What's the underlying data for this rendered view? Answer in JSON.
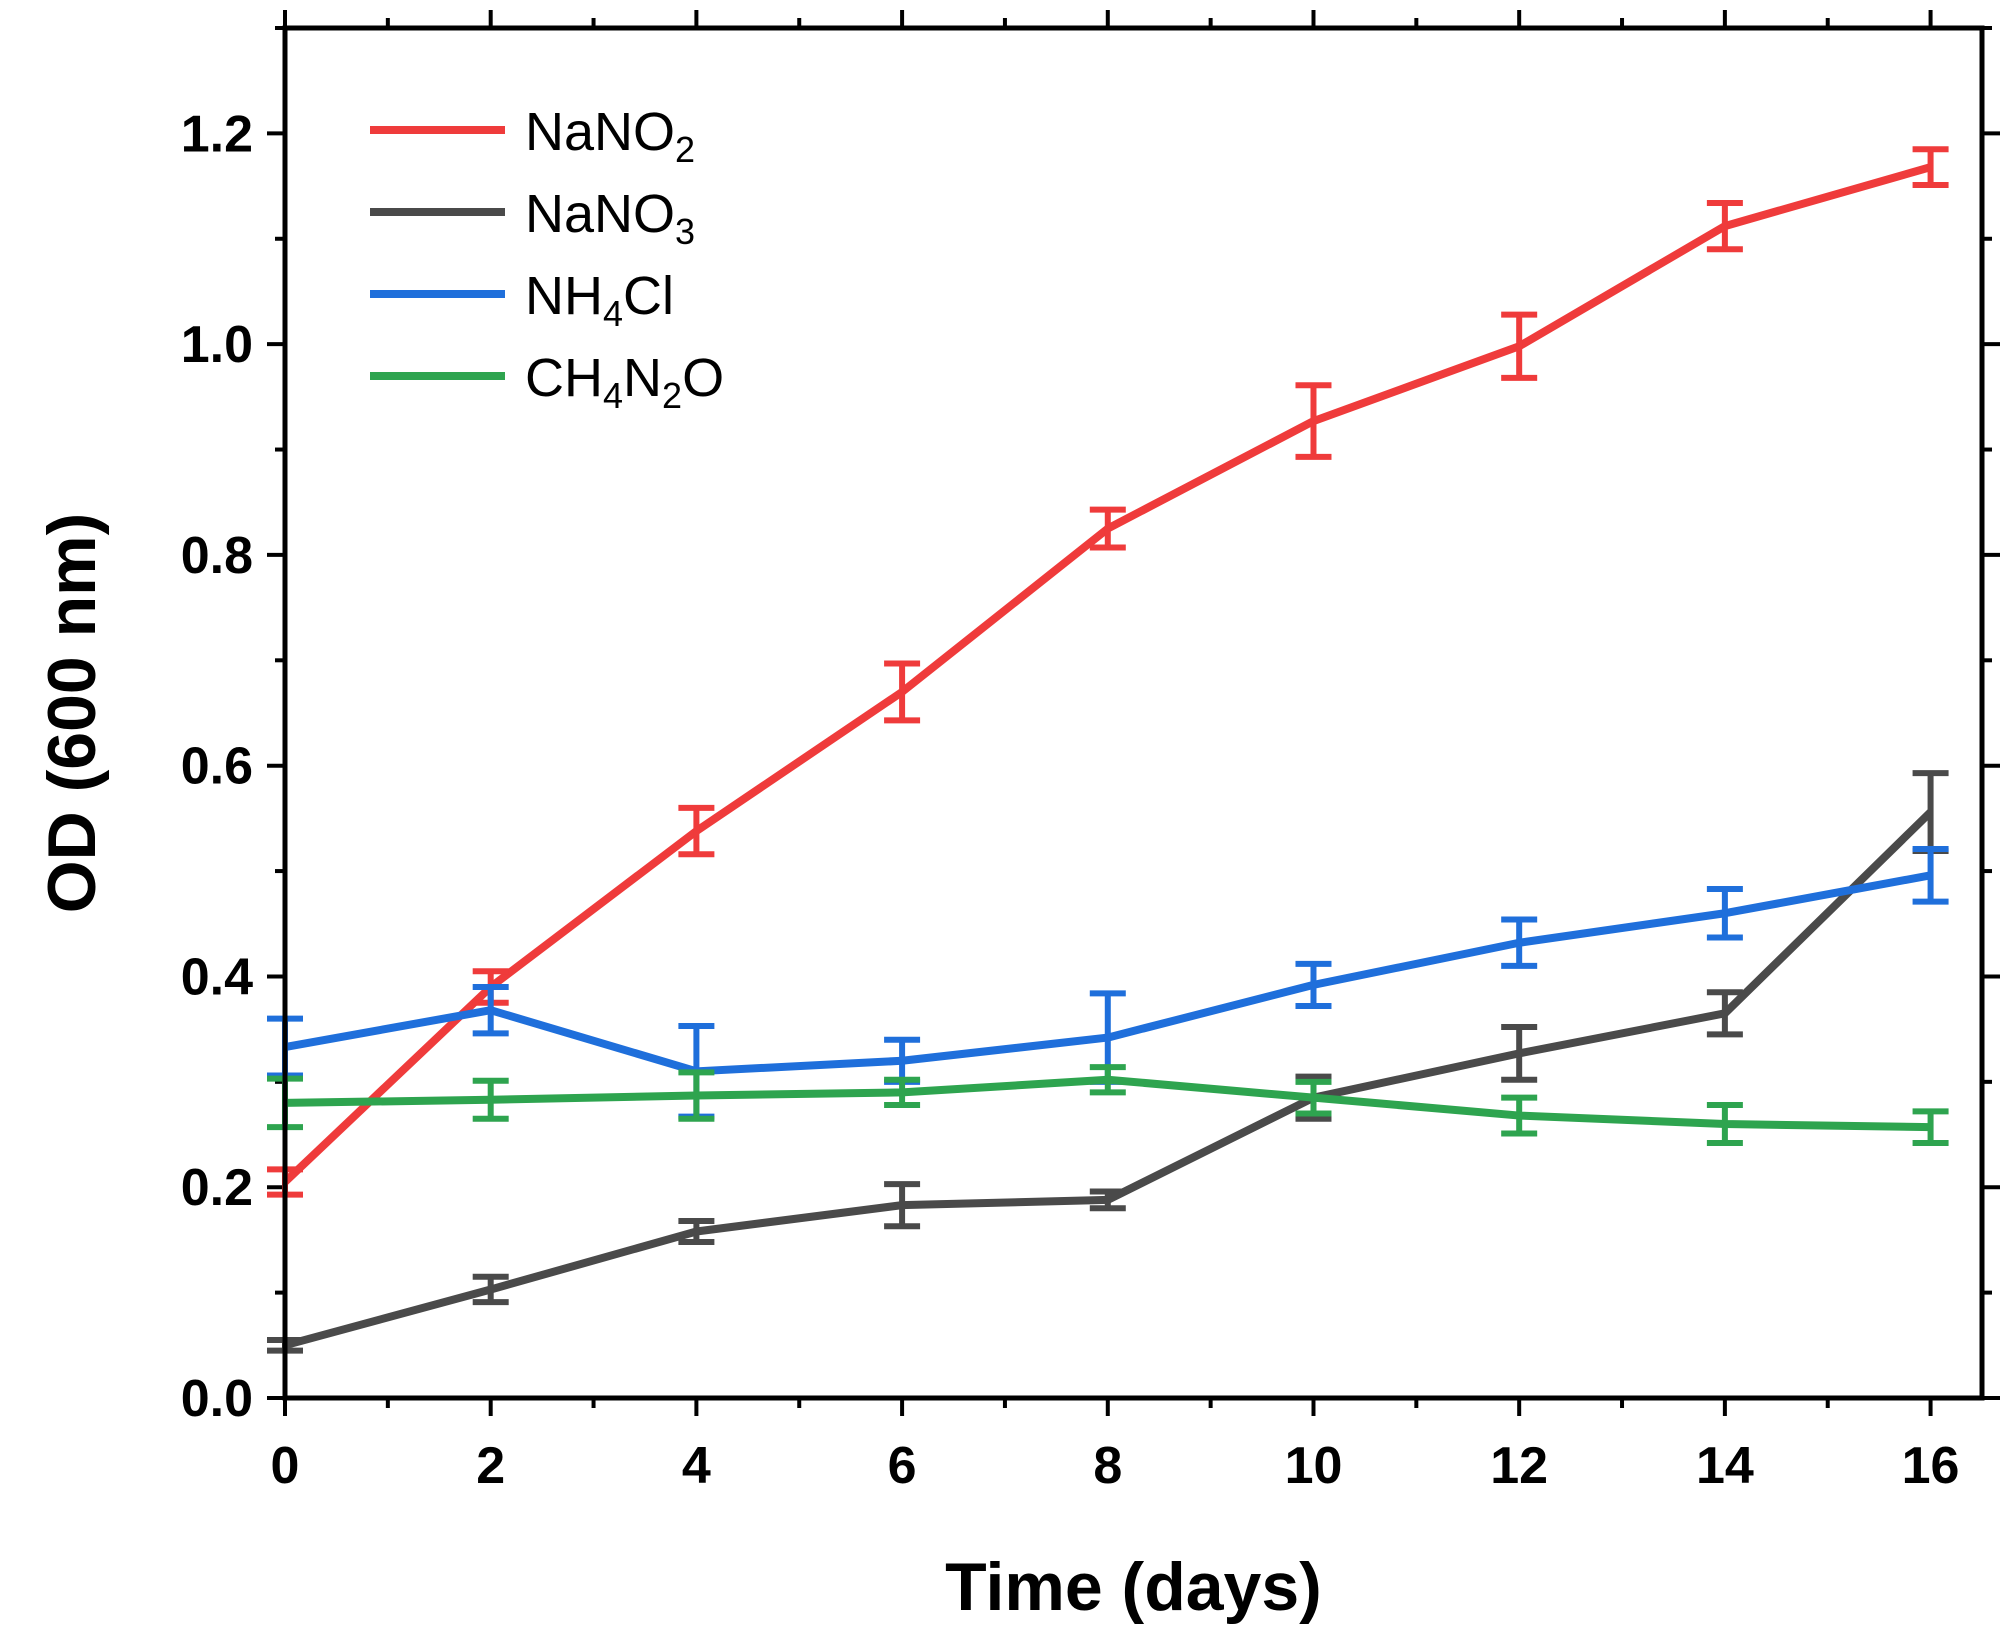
{
  "chart_data": {
    "type": "line",
    "xlabel": "Time (days)",
    "ylabel": "OD (600 nm)",
    "xlim": [
      0,
      16.5
    ],
    "ylim": [
      0,
      1.3
    ],
    "xticks": [
      "0",
      "2",
      "4",
      "6",
      "8",
      "10",
      "12",
      "14",
      "16"
    ],
    "yticks": [
      "0.0",
      "0.2",
      "0.4",
      "0.6",
      "0.8",
      "1.0",
      "1.2"
    ],
    "legend_position": "top-left",
    "x": [
      0,
      2,
      4,
      6,
      8,
      10,
      12,
      14,
      16
    ],
    "series": [
      {
        "name": "NaNO2",
        "legend_parts": [
          {
            "t": "NaNO"
          },
          {
            "t": "2",
            "sub": true
          }
        ],
        "color": "#ef3b3b",
        "values": [
          0.205,
          0.39,
          0.538,
          0.67,
          0.825,
          0.927,
          0.998,
          1.112,
          1.168
        ],
        "errors": [
          0.012,
          0.015,
          0.022,
          0.027,
          0.018,
          0.034,
          0.03,
          0.022,
          0.017
        ]
      },
      {
        "name": "NaNO3",
        "legend_parts": [
          {
            "t": "NaNO"
          },
          {
            "t": "3",
            "sub": true
          }
        ],
        "color": "#4a4a4a",
        "values": [
          0.05,
          0.103,
          0.158,
          0.183,
          0.188,
          0.285,
          0.327,
          0.365,
          0.556
        ],
        "errors": [
          0.005,
          0.012,
          0.01,
          0.02,
          0.008,
          0.02,
          0.025,
          0.02,
          0.037
        ]
      },
      {
        "name": "NH4Cl",
        "legend_parts": [
          {
            "t": "NH"
          },
          {
            "t": "4",
            "sub": true
          },
          {
            "t": "Cl"
          }
        ],
        "color": "#1f6fdb",
        "values": [
          0.333,
          0.368,
          0.31,
          0.32,
          0.342,
          0.392,
          0.432,
          0.46,
          0.496
        ],
        "errors": [
          0.027,
          0.022,
          0.043,
          0.02,
          0.042,
          0.02,
          0.022,
          0.023,
          0.025
        ]
      },
      {
        "name": "CH4N2O",
        "legend_parts": [
          {
            "t": "CH"
          },
          {
            "t": "4",
            "sub": true
          },
          {
            "t": "N"
          },
          {
            "t": "2",
            "sub": true
          },
          {
            "t": "O"
          }
        ],
        "color": "#2ea44f",
        "values": [
          0.28,
          0.283,
          0.287,
          0.29,
          0.302,
          0.285,
          0.268,
          0.26,
          0.257
        ],
        "errors": [
          0.023,
          0.018,
          0.022,
          0.012,
          0.012,
          0.015,
          0.017,
          0.018,
          0.015
        ]
      }
    ]
  }
}
